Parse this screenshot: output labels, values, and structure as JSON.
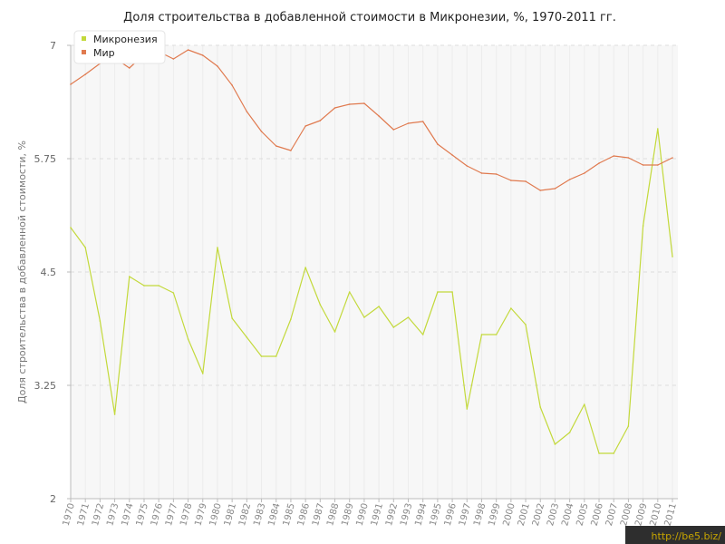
{
  "chart_data": {
    "type": "line",
    "title": "Доля строительства в добавленной стоимости в Микронезии, %, 1970-2011 гг.",
    "ylabel": "Доля строительства в добавленной стоимости, %",
    "xlabel": "",
    "ylim": [
      2,
      7
    ],
    "yticks": [
      "2",
      "3.25",
      "4.5",
      "5.75",
      "7"
    ],
    "grid": true,
    "legend_position": "top-left",
    "x": [
      "1970",
      "1971",
      "1972",
      "1973",
      "1974",
      "1975",
      "1976",
      "1977",
      "1978",
      "1979",
      "1980",
      "1981",
      "1982",
      "1983",
      "1984",
      "1985",
      "1986",
      "1987",
      "1988",
      "1989",
      "1990",
      "1991",
      "1992",
      "1993",
      "1994",
      "1995",
      "1996",
      "1997",
      "1998",
      "1999",
      "2000",
      "2001",
      "2002",
      "2003",
      "2004",
      "2005",
      "2006",
      "2007",
      "2008",
      "2009",
      "2010",
      "2011"
    ],
    "series": [
      {
        "name": "Микронезия",
        "color": "#c3d93b",
        "values": [
          4.99,
          4.77,
          3.96,
          2.93,
          4.45,
          4.35,
          4.35,
          4.27,
          3.76,
          3.38,
          4.77,
          3.99,
          3.78,
          3.57,
          3.57,
          3.98,
          4.55,
          4.14,
          3.84,
          4.28,
          4.0,
          4.12,
          3.89,
          4.0,
          3.81,
          4.28,
          4.28,
          2.99,
          3.81,
          3.81,
          4.1,
          3.92,
          3.01,
          2.6,
          2.73,
          3.04,
          2.5,
          2.5,
          2.8,
          5.01,
          6.08,
          4.67
        ]
      },
      {
        "name": "Мир",
        "color": "#e07a4f",
        "values": [
          6.57,
          6.68,
          6.8,
          6.86,
          6.75,
          6.9,
          6.93,
          6.85,
          6.95,
          6.89,
          6.77,
          6.56,
          6.27,
          6.05,
          5.89,
          5.84,
          6.11,
          6.17,
          6.31,
          6.35,
          6.36,
          6.22,
          6.07,
          6.14,
          6.16,
          5.91,
          5.79,
          5.67,
          5.59,
          5.58,
          5.51,
          5.5,
          5.4,
          5.42,
          5.52,
          5.59,
          5.7,
          5.78,
          5.76,
          5.68,
          5.68,
          5.76
        ]
      }
    ]
  },
  "watermark": "http://be5.biz/"
}
